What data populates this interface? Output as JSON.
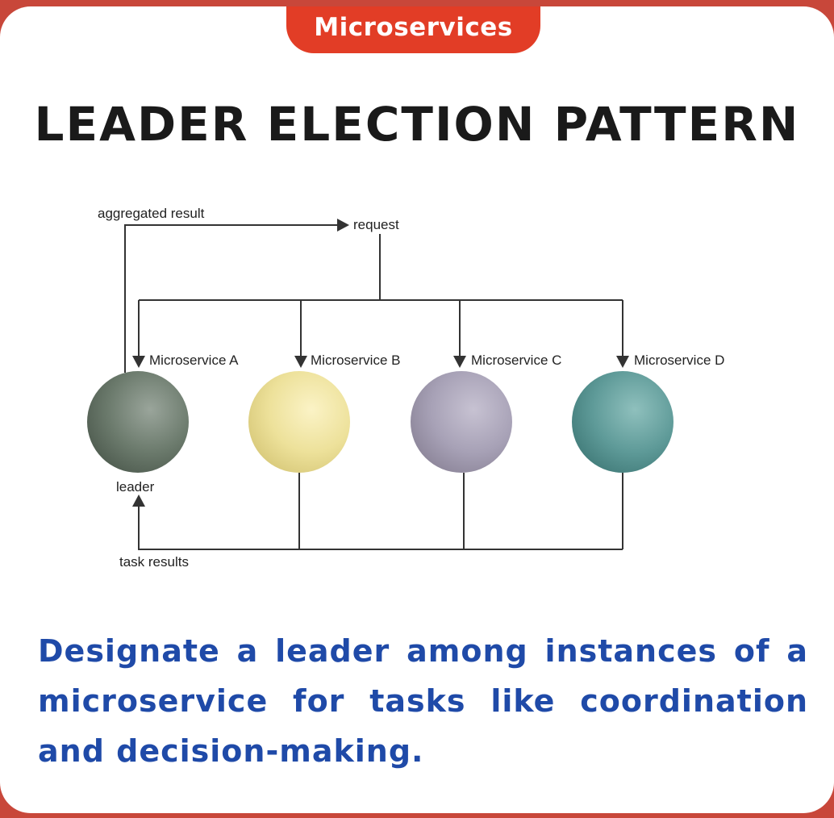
{
  "header": {
    "tag": "Microservices",
    "title": "LEADER ELECTION PATTERN"
  },
  "diagram": {
    "labels": {
      "aggregated_result": "aggregated result",
      "request": "request",
      "leader": "leader",
      "task_results": "task results"
    },
    "services": [
      {
        "name": "Microservice A",
        "color": "#6b7a6c"
      },
      {
        "name": "Microservice B",
        "color": "#ede19a"
      },
      {
        "name": "Microservice C",
        "color": "#a7a1b6"
      },
      {
        "name": "Microservice D",
        "color": "#5e9a98"
      }
    ]
  },
  "description": "Designate a leader among instances of a microservice for tasks like coordination and decision-making."
}
